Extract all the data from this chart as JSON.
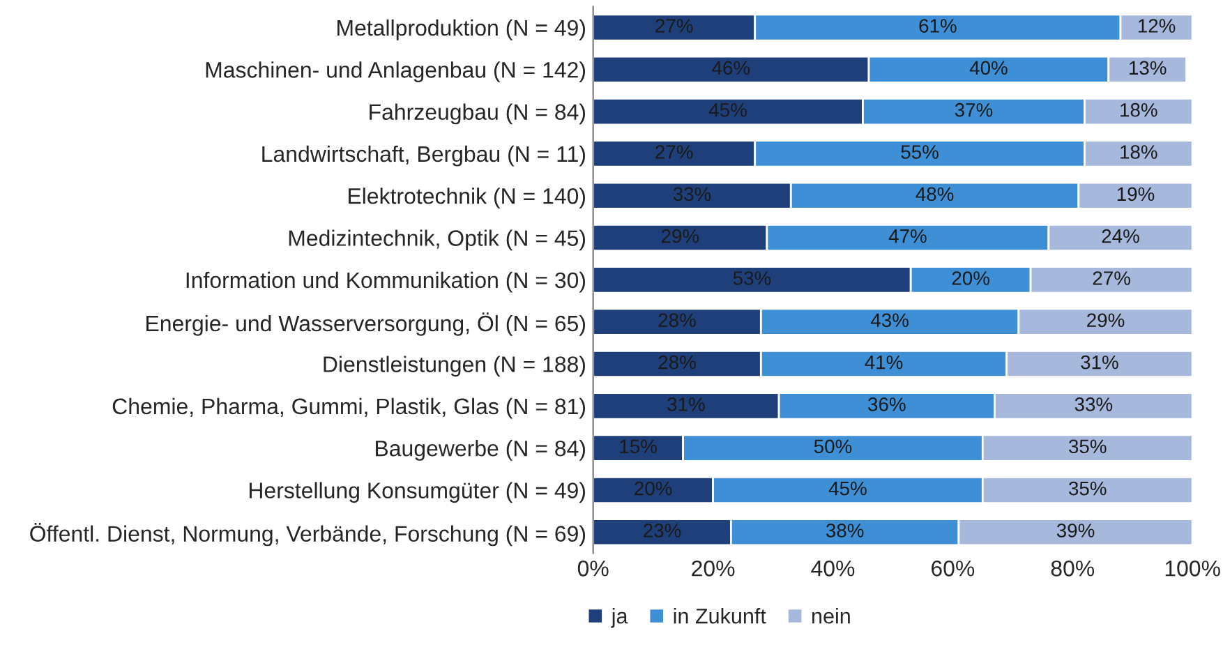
{
  "chart_data": {
    "type": "bar",
    "orientation": "horizontal",
    "stacked": true,
    "categories": [
      "Metallproduktion (N = 49)",
      "Maschinen- und Anlagenbau (N = 142)",
      "Fahrzeugbau (N = 84)",
      "Landwirtschaft, Bergbau (N = 11)",
      "Elektrotechnik (N = 140)",
      "Medizintechnik, Optik (N = 45)",
      "Information und Kommunikation (N = 30)",
      "Energie- und Wasserversorgung, Öl (N = 65)",
      "Dienstleistungen (N = 188)",
      "Chemie, Pharma, Gummi, Plastik, Glas (N = 81)",
      "Baugewerbe (N = 84)",
      "Herstellung Konsumgüter (N = 49)",
      "Öffentl. Dienst, Normung, Verbände, Forschung (N = 69)"
    ],
    "series": [
      {
        "name": "ja",
        "color": "#1f3f7a",
        "values": [
          27,
          46,
          45,
          27,
          33,
          29,
          53,
          28,
          28,
          31,
          15,
          20,
          23
        ],
        "value_labels": [
          "27%",
          "46%",
          "45%",
          "27%",
          "33%",
          "29%",
          "53%",
          "28%",
          "28%",
          "31%",
          "15%",
          "20%",
          "23%"
        ]
      },
      {
        "name": "in Zukunft",
        "color": "#3f8fd6",
        "values": [
          61,
          40,
          37,
          55,
          48,
          47,
          20,
          43,
          41,
          36,
          50,
          45,
          38
        ],
        "value_labels": [
          "61%",
          "40%",
          "37%",
          "55%",
          "48%",
          "47%",
          "20%",
          "43%",
          "41%",
          "36%",
          "50%",
          "45%",
          "38%"
        ]
      },
      {
        "name": "nein",
        "color": "#a6b8dc",
        "values": [
          12,
          13,
          18,
          18,
          19,
          24,
          27,
          29,
          31,
          33,
          35,
          35,
          39
        ],
        "value_labels": [
          "12%",
          "13%",
          "18%",
          "18%",
          "19%",
          "24%",
          "27%",
          "29%",
          "31%",
          "33%",
          "35%",
          "35%",
          "39%"
        ]
      }
    ],
    "xlim": [
      0,
      100
    ],
    "xticks": [
      {
        "value": 0,
        "label": "0%"
      },
      {
        "value": 20,
        "label": "20%"
      },
      {
        "value": 40,
        "label": "40%"
      },
      {
        "value": 60,
        "label": "60%"
      },
      {
        "value": 80,
        "label": "80%"
      },
      {
        "value": 100,
        "label": "100%"
      }
    ],
    "grid": false,
    "legend": "bottom left"
  }
}
